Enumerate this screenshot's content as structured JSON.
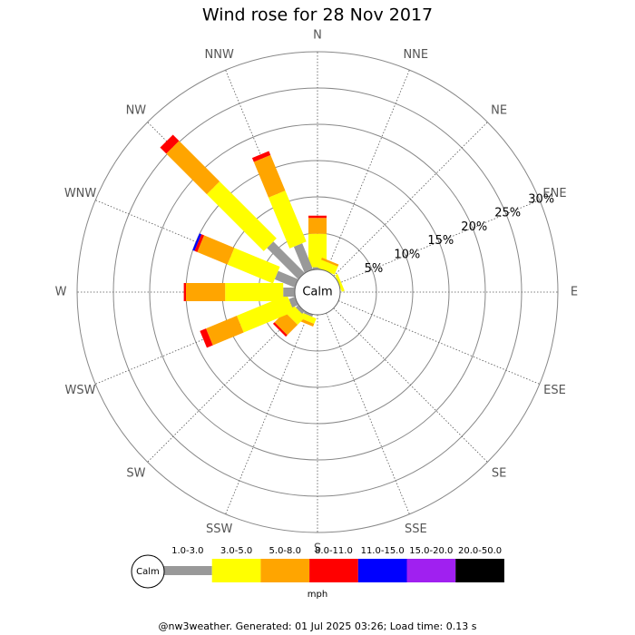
{
  "chart_data": {
    "type": "wind-rose",
    "title": "Wind rose for 28 Nov 2017",
    "directions": [
      "N",
      "NNE",
      "NE",
      "ENE",
      "E",
      "ESE",
      "SE",
      "SSE",
      "S",
      "SSW",
      "SW",
      "WSW",
      "W",
      "WNW",
      "NW",
      "NNW"
    ],
    "center_label": "Calm",
    "rlim": [
      0,
      30
    ],
    "rticks": [
      {
        "value": 5,
        "label": "5%"
      },
      {
        "value": 10,
        "label": "10%"
      },
      {
        "value": 15,
        "label": "15%"
      },
      {
        "value": 20,
        "label": "20%"
      },
      {
        "value": 25,
        "label": "25%"
      },
      {
        "value": 30,
        "label": "30%"
      }
    ],
    "series": [
      {
        "name": "1.0-3.0",
        "color": "#999999",
        "values": [
          0.3,
          0,
          0,
          0,
          0,
          0,
          0,
          0,
          0,
          0.3,
          0.5,
          0.9,
          1.6,
          3.0,
          6.1,
          3.9
        ]
      },
      {
        "name": "3.0-5.0",
        "color": "#ffff00",
        "values": [
          4.6,
          1.2,
          0,
          0.4,
          0,
          0,
          0,
          0,
          0,
          0.8,
          1.5,
          7.5,
          8.0,
          6.8,
          11.1,
          7.6
        ]
      },
      {
        "name": "5.0-8.0",
        "color": "#ffa500",
        "values": [
          2.2,
          0.3,
          0,
          0,
          0,
          0,
          0,
          0,
          0,
          0.4,
          2.0,
          4.6,
          5.4,
          4.5,
          7.9,
          5.3
        ]
      },
      {
        "name": "8.0-11.0",
        "color": "#ff0000",
        "values": [
          0.3,
          0,
          0,
          0,
          0,
          0,
          0,
          0,
          0,
          0,
          0.3,
          0.9,
          0.3,
          0.4,
          1.2,
          0.6
        ]
      },
      {
        "name": "11.0-15.0",
        "color": "#0000ff",
        "values": [
          0,
          0,
          0,
          0,
          0,
          0,
          0,
          0,
          0,
          0,
          0,
          0,
          0,
          0.3,
          0,
          0
        ]
      },
      {
        "name": "15.0-20.0",
        "color": "#a020f0",
        "values": [
          0,
          0,
          0,
          0,
          0,
          0,
          0,
          0,
          0,
          0,
          0,
          0,
          0,
          0,
          0,
          0
        ]
      },
      {
        "name": "20.0-50.0",
        "color": "#000000",
        "values": [
          0,
          0,
          0,
          0,
          0,
          0,
          0,
          0,
          0,
          0,
          0,
          0,
          0,
          0,
          0,
          0
        ]
      }
    ],
    "legend_unit": "mph",
    "footer": "@nw3weather. Generated: 01 Jul 2025 03:26; Load time: 0.13 s"
  }
}
